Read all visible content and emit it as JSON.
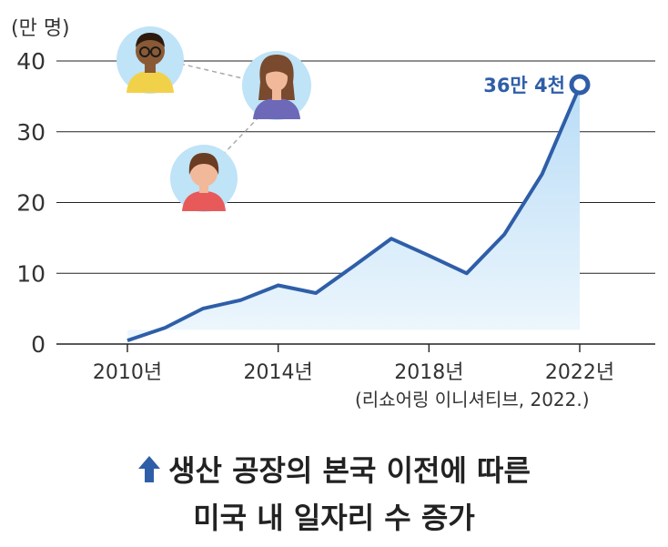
{
  "chart_data": {
    "type": "area",
    "unit_label": "(만 명)",
    "x": [
      2010,
      2011,
      2012,
      2013,
      2014,
      2015,
      2016,
      2017,
      2018,
      2019,
      2020,
      2021,
      2022
    ],
    "values": [
      0.5,
      2.3,
      5.0,
      6.2,
      8.3,
      7.2,
      11.0,
      14.9,
      12.5,
      10.0,
      15.5,
      24.0,
      36.4
    ],
    "ylim": [
      0,
      40
    ],
    "yticks": [
      "0",
      "10",
      "20",
      "30",
      "40"
    ],
    "xticks": [
      {
        "x": 2010,
        "label": "2010년"
      },
      {
        "x": 2014,
        "label": "2014년"
      },
      {
        "x": 2018,
        "label": "2018년"
      },
      {
        "x": 2022,
        "label": "2022년"
      }
    ],
    "peak_annotation": "36만 4천",
    "source": "(리쇼어링 이니셔티브, 2022.)",
    "grid": true,
    "colors": {
      "line": "#2f5ea8",
      "fill_top": "#b9dcf6",
      "fill_bottom": "#eef7fd",
      "grid": "#222222"
    }
  },
  "caption": {
    "line1": "생산 공장의 본국 이전에 따른",
    "line2": "미국 내 일자리 수 증가",
    "icon": "up-arrow-icon"
  },
  "illustrations": [
    "man-glasses-avatar-icon",
    "woman-avatar-icon",
    "child-avatar-icon"
  ]
}
